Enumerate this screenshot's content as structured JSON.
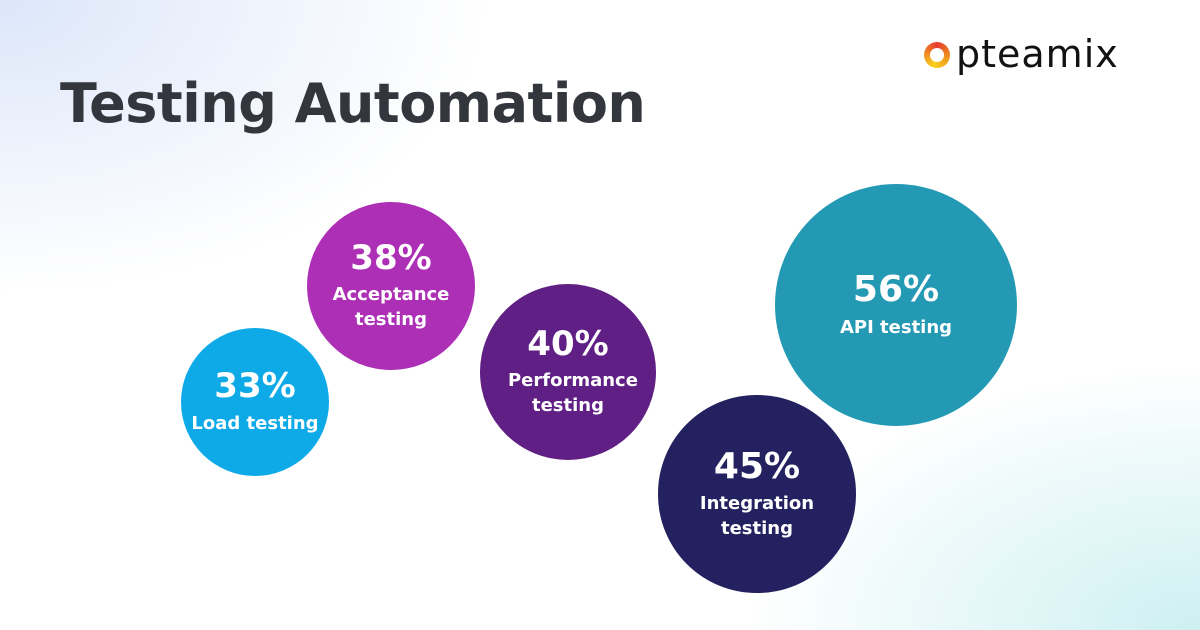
{
  "brand": {
    "name": "pteamix"
  },
  "chart_data": {
    "type": "bubble",
    "title": "Testing Automation",
    "unit": "%",
    "items": [
      {
        "label": "Load testing",
        "value": 33,
        "value_label": "33%",
        "color": "#0eaae8"
      },
      {
        "label": "Acceptance testing",
        "value": 38,
        "value_label": "38%",
        "color": "#ad2fb6"
      },
      {
        "label": "Performance testing",
        "value": 40,
        "value_label": "40%",
        "color": "#5f1f84"
      },
      {
        "label": "Integration testing",
        "value": 45,
        "value_label": "45%",
        "color": "#23215f"
      },
      {
        "label": "API testing",
        "value": 56,
        "value_label": "56%",
        "color": "#2399b4"
      }
    ]
  }
}
